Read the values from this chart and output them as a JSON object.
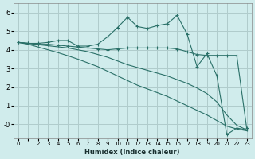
{
  "xlabel": "Humidex (Indice chaleur)",
  "bg_color": "#d0ecec",
  "grid_color": "#b0cccc",
  "line_color": "#2a7068",
  "xlim": [
    -0.5,
    23.5
  ],
  "ylim": [
    -0.75,
    6.5
  ],
  "yticks": [
    0,
    1,
    2,
    3,
    4,
    5,
    6
  ],
  "ytick_labels": [
    "-0",
    "1",
    "2",
    "3",
    "4",
    "5",
    "6"
  ],
  "xticks": [
    0,
    1,
    2,
    3,
    4,
    5,
    6,
    7,
    8,
    9,
    10,
    11,
    12,
    13,
    14,
    15,
    16,
    17,
    18,
    19,
    20,
    21,
    22,
    23
  ],
  "series": [
    {
      "x": [
        0,
        1,
        2,
        3,
        4,
        5,
        6,
        7,
        8,
        9,
        10,
        11,
        12,
        13,
        14,
        15,
        16,
        17,
        18,
        19,
        20,
        21,
        22,
        23
      ],
      "y": [
        4.4,
        4.35,
        4.35,
        4.4,
        4.5,
        4.5,
        4.2,
        4.2,
        4.3,
        4.7,
        5.2,
        5.75,
        5.25,
        5.15,
        5.3,
        5.4,
        5.85,
        4.85,
        3.1,
        3.8,
        2.6,
        -0.55,
        -0.2,
        -0.3
      ],
      "marker": true
    },
    {
      "x": [
        0,
        1,
        2,
        3,
        4,
        5,
        6,
        7,
        8,
        9,
        10,
        11,
        12,
        13,
        14,
        15,
        16,
        17,
        18,
        19,
        20,
        21,
        22,
        23
      ],
      "y": [
        4.4,
        4.35,
        4.3,
        4.3,
        4.25,
        4.2,
        4.15,
        4.1,
        4.05,
        4.0,
        4.05,
        4.1,
        4.1,
        4.1,
        4.1,
        4.1,
        4.05,
        3.9,
        3.75,
        3.7,
        3.7,
        3.7,
        3.7,
        -0.2
      ],
      "marker": true
    },
    {
      "x": [
        0,
        1,
        2,
        3,
        4,
        5,
        6,
        7,
        8,
        9,
        10,
        11,
        12,
        13,
        14,
        15,
        16,
        17,
        18,
        19,
        20,
        21,
        22,
        23
      ],
      "y": [
        4.4,
        4.35,
        4.28,
        4.22,
        4.16,
        4.1,
        4.0,
        3.9,
        3.75,
        3.6,
        3.4,
        3.2,
        3.05,
        2.9,
        2.75,
        2.6,
        2.4,
        2.2,
        1.95,
        1.65,
        1.2,
        0.5,
        -0.05,
        -0.3
      ],
      "marker": false
    },
    {
      "x": [
        0,
        1,
        2,
        3,
        4,
        5,
        6,
        7,
        8,
        9,
        10,
        11,
        12,
        13,
        14,
        15,
        16,
        17,
        18,
        19,
        20,
        21,
        22,
        23
      ],
      "y": [
        4.4,
        4.3,
        4.15,
        4.0,
        3.85,
        3.68,
        3.5,
        3.3,
        3.1,
        2.85,
        2.6,
        2.35,
        2.1,
        1.9,
        1.7,
        1.5,
        1.25,
        1.0,
        0.75,
        0.5,
        0.2,
        -0.1,
        -0.25,
        -0.35
      ],
      "marker": false
    }
  ]
}
